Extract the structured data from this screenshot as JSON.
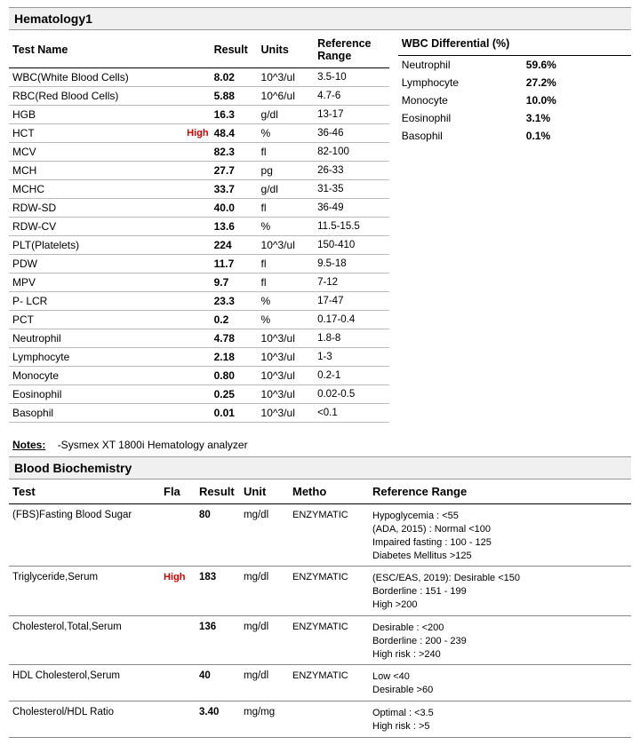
{
  "hematology": {
    "section_title": "Hematology1",
    "columns": {
      "name": "Test Name",
      "result": "Result",
      "units": "Units",
      "ref": "Reference Range"
    },
    "rows": [
      {
        "name": "WBC(White Blood Cells)",
        "flag": "",
        "result": "8.02",
        "units": "10^3/ul",
        "ref": "3.5-10"
      },
      {
        "name": "RBC(Red Blood Cells)",
        "flag": "",
        "result": "5.88",
        "units": "10^6/ul",
        "ref": "4.7-6"
      },
      {
        "name": "HGB",
        "flag": "",
        "result": "16.3",
        "units": "g/dl",
        "ref": "13-17"
      },
      {
        "name": "HCT",
        "flag": "High",
        "result": "48.4",
        "units": "%",
        "ref": "36-46"
      },
      {
        "name": "MCV",
        "flag": "",
        "result": "82.3",
        "units": "fl",
        "ref": "82-100"
      },
      {
        "name": "MCH",
        "flag": "",
        "result": "27.7",
        "units": "pg",
        "ref": "26-33"
      },
      {
        "name": "MCHC",
        "flag": "",
        "result": "33.7",
        "units": "g/dl",
        "ref": "31-35"
      },
      {
        "name": "RDW-SD",
        "flag": "",
        "result": "40.0",
        "units": "fl",
        "ref": "36-49"
      },
      {
        "name": "RDW-CV",
        "flag": "",
        "result": "13.6",
        "units": "%",
        "ref": "11.5-15.5"
      },
      {
        "name": "PLT(Platelets)",
        "flag": "",
        "result": "224",
        "units": "10^3/ul",
        "ref": "150-410"
      },
      {
        "name": "PDW",
        "flag": "",
        "result": "11.7",
        "units": "fl",
        "ref": "9.5-18"
      },
      {
        "name": "MPV",
        "flag": "",
        "result": "9.7",
        "units": "fl",
        "ref": "7-12"
      },
      {
        "name": "P- LCR",
        "flag": "",
        "result": "23.3",
        "units": "%",
        "ref": "17-47"
      },
      {
        "name": "PCT",
        "flag": "",
        "result": "0.2",
        "units": "%",
        "ref": "0.17-0.4"
      },
      {
        "name": "Neutrophil",
        "flag": "",
        "result": "4.78",
        "units": "10^3/ul",
        "ref": "1.8-8"
      },
      {
        "name": "Lymphocyte",
        "flag": "",
        "result": "2.18",
        "units": "10^3/ul",
        "ref": "1-3"
      },
      {
        "name": "Monocyte",
        "flag": "",
        "result": "0.80",
        "units": "10^3/ul",
        "ref": "0.2-1"
      },
      {
        "name": "Eosinophil",
        "flag": "",
        "result": "0.25",
        "units": "10^3/ul",
        "ref": "0.02-0.5"
      },
      {
        "name": "Basophil",
        "flag": "",
        "result": "0.01",
        "units": "10^3/ul",
        "ref": "<0.1"
      }
    ],
    "differential": {
      "title": "WBC Differential (%)",
      "rows": [
        {
          "name": "Neutrophil",
          "value": "59.6%"
        },
        {
          "name": "Lymphocyte",
          "value": "27.2%"
        },
        {
          "name": "Monocyte",
          "value": "10.0%"
        },
        {
          "name": "Eosinophil",
          "value": "3.1%"
        },
        {
          "name": "Basophil",
          "value": "0.1%"
        }
      ]
    },
    "notes_label": "Notes:",
    "notes_text": "-Sysmex XT 1800i Hematology analyzer"
  },
  "biochem": {
    "section_title": "Blood Biochemistry",
    "columns": {
      "test": "Test",
      "flag": "Fla",
      "result": "Result",
      "unit": "Unit",
      "method": "Metho",
      "ref": "Reference Range"
    },
    "rows": [
      {
        "test": "(FBS)Fasting Blood Sugar",
        "flag": "",
        "result": "80",
        "unit": "mg/dl",
        "method": "ENZYMATIC",
        "ref": "Hypoglycemia : <55\n(ADA, 2015) : Normal <100\n          Impaired fasting : 100 - 125\n          Diabetes Mellitus >125"
      },
      {
        "test": "Triglyceride,Serum",
        "flag": "High",
        "result": "183",
        "unit": "mg/dl",
        "method": "ENZYMATIC",
        "ref": "(ESC/EAS, 2019): Desirable <150\n                   Borderline : 151 - 199\n                   High >200"
      },
      {
        "test": "Cholesterol,Total,Serum",
        "flag": "",
        "result": "136",
        "unit": "mg/dl",
        "method": "ENZYMATIC",
        "ref": "Desirable : <200\nBorderline : 200 - 239\nHigh risk : >240"
      },
      {
        "test": "HDL Cholesterol,Serum",
        "flag": "",
        "result": "40",
        "unit": "mg/dl",
        "method": "ENZYMATIC",
        "ref": "Low <40\nDesirable >60"
      },
      {
        "test": "Cholesterol/HDL Ratio",
        "flag": "",
        "result": "3.40",
        "unit": "mg/mg",
        "method": "",
        "ref": "Optimal : <3.5\nHigh risk : >5"
      }
    ]
  },
  "colors": {
    "flag_color": "#d00000",
    "header_bg": "#f0f0f0",
    "border": "#999999",
    "row_border": "#bbbbbb"
  }
}
